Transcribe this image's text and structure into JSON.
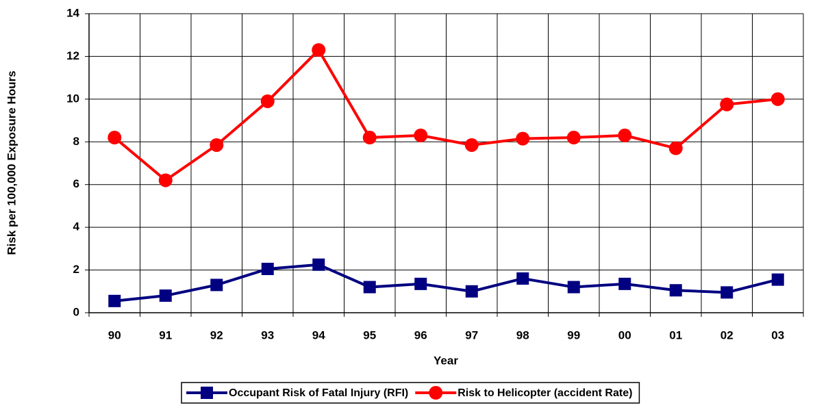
{
  "chart_data": {
    "type": "line",
    "x_label": "Year",
    "y_label": "Risk per 100,000 Exposure Hours",
    "categories": [
      "90",
      "91",
      "92",
      "93",
      "94",
      "95",
      "96",
      "97",
      "98",
      "99",
      "00",
      "01",
      "02",
      "03"
    ],
    "series": [
      {
        "name": "Occupant Risk of Fatal Injury (RFI)",
        "color": "#000080",
        "marker": "square",
        "values": [
          0.55,
          0.8,
          1.3,
          2.05,
          2.25,
          1.2,
          1.35,
          1.0,
          1.6,
          1.2,
          1.35,
          1.05,
          0.95,
          1.55
        ]
      },
      {
        "name": "Risk to Helicopter (accident Rate)",
        "color": "#ff0000",
        "marker": "circle",
        "values": [
          8.2,
          6.2,
          7.85,
          9.9,
          12.3,
          8.2,
          8.3,
          7.85,
          8.15,
          8.2,
          8.3,
          7.7,
          9.75,
          10.0
        ]
      }
    ],
    "ylim": [
      0,
      14
    ],
    "yticks": [
      0,
      2,
      4,
      6,
      8,
      10,
      12,
      14
    ],
    "grid": true,
    "legend": "bottom"
  }
}
